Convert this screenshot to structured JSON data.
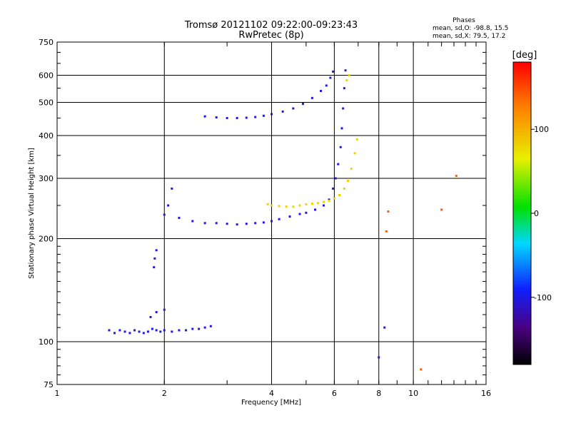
{
  "colors": {
    "frame": "#000000",
    "ordinary_mode": "#1a2ae0",
    "extraordinary_mode": "#d8f020"
  },
  "chart_data": {
    "type": "scatter",
    "title": "Tromsø 20121102 09:22:00-09:23:43",
    "subtitle": "RwPretec (8p)",
    "stats_header": "Phases",
    "stats_o": "mean, sd,O: -98.8, 15.5",
    "stats_x": "mean, sd,X:  79.5, 17.2",
    "xlabel": "Frequency [MHz]",
    "ylabel": "Stationary phase Virtual Height [km]",
    "x_scale": "log",
    "y_scale": "log",
    "xlim": [
      1,
      16
    ],
    "ylim": [
      75,
      750
    ],
    "x_ticks": [
      {
        "value": 1,
        "label": "1"
      },
      {
        "value": 2,
        "label": "2"
      },
      {
        "value": 4,
        "label": "4"
      },
      {
        "value": 6,
        "label": "6"
      },
      {
        "value": 8,
        "label": "8"
      },
      {
        "value": 10,
        "label": "10"
      },
      {
        "value": 16,
        "label": "16"
      }
    ],
    "y_ticks": [
      {
        "value": 75,
        "label": "75"
      },
      {
        "value": 100,
        "label": "100"
      },
      {
        "value": 200,
        "label": "200"
      },
      {
        "value": 300,
        "label": "300"
      },
      {
        "value": 400,
        "label": "400"
      },
      {
        "value": 500,
        "label": "500"
      },
      {
        "value": 600,
        "label": "600"
      },
      {
        "value": 750,
        "label": "750"
      }
    ],
    "x_gridlines": [
      2,
      4,
      6,
      8,
      10
    ],
    "y_gridlines": [
      100,
      200,
      300,
      400,
      500,
      600
    ],
    "grid": true,
    "colorbar": {
      "label": "[deg]",
      "min": -180,
      "max": 180,
      "ticks": [
        {
          "value": 100,
          "label": "100"
        },
        {
          "value": 0,
          "label": "0"
        },
        {
          "value": -100,
          "label": "-100"
        }
      ]
    },
    "series": [
      {
        "phase_deg": -100,
        "points": [
          [
            1.4,
            108
          ],
          [
            1.45,
            106
          ],
          [
            1.5,
            108
          ],
          [
            1.55,
            107
          ],
          [
            1.6,
            106
          ],
          [
            1.65,
            108
          ],
          [
            1.7,
            107
          ],
          [
            1.75,
            106
          ],
          [
            1.8,
            107
          ],
          [
            1.85,
            109
          ],
          [
            1.9,
            108
          ],
          [
            1.95,
            107
          ],
          [
            2.0,
            108
          ],
          [
            2.1,
            107
          ],
          [
            2.2,
            108
          ],
          [
            2.3,
            108
          ],
          [
            2.4,
            109
          ],
          [
            2.5,
            109
          ],
          [
            2.6,
            110
          ],
          [
            2.7,
            111
          ],
          [
            1.83,
            118
          ],
          [
            1.9,
            122
          ],
          [
            2.0,
            124
          ],
          [
            1.87,
            165
          ],
          [
            1.88,
            175
          ],
          [
            1.9,
            185
          ],
          [
            2.0,
            235
          ],
          [
            2.05,
            250
          ],
          [
            2.1,
            280
          ],
          [
            2.2,
            230
          ],
          [
            2.4,
            225
          ],
          [
            2.6,
            222
          ],
          [
            2.8,
            222
          ],
          [
            3.0,
            221
          ],
          [
            3.2,
            220
          ],
          [
            3.4,
            221
          ],
          [
            3.6,
            222
          ],
          [
            3.8,
            223
          ],
          [
            4.0,
            225
          ],
          [
            4.2,
            228
          ],
          [
            4.5,
            232
          ],
          [
            4.8,
            236
          ],
          [
            5.0,
            238
          ],
          [
            5.3,
            243
          ],
          [
            5.6,
            250
          ],
          [
            5.8,
            260
          ],
          [
            5.95,
            280
          ],
          [
            6.05,
            300
          ],
          [
            6.15,
            330
          ],
          [
            6.25,
            370
          ],
          [
            6.3,
            420
          ],
          [
            6.35,
            480
          ],
          [
            6.4,
            550
          ],
          [
            6.45,
            620
          ],
          [
            2.6,
            455
          ],
          [
            2.8,
            452
          ],
          [
            3.0,
            450
          ],
          [
            3.2,
            450
          ],
          [
            3.4,
            451
          ],
          [
            3.6,
            453
          ],
          [
            3.8,
            457
          ],
          [
            4.0,
            462
          ],
          [
            4.3,
            470
          ],
          [
            4.6,
            480
          ],
          [
            4.9,
            495
          ],
          [
            5.2,
            515
          ],
          [
            5.5,
            540
          ],
          [
            5.7,
            560
          ],
          [
            5.85,
            590
          ],
          [
            5.95,
            615
          ],
          [
            8.0,
            90
          ],
          [
            8.3,
            110
          ]
        ]
      },
      {
        "phase_deg": 80,
        "points": [
          [
            3.9,
            252
          ],
          [
            4.0,
            250
          ],
          [
            4.2,
            249
          ],
          [
            4.4,
            248
          ],
          [
            4.6,
            248
          ],
          [
            4.8,
            250
          ],
          [
            5.0,
            252
          ],
          [
            5.2,
            253
          ],
          [
            5.4,
            254
          ],
          [
            5.6,
            256
          ],
          [
            5.8,
            258
          ],
          [
            6.0,
            262
          ],
          [
            6.2,
            268
          ],
          [
            6.4,
            280
          ],
          [
            6.55,
            295
          ],
          [
            6.7,
            320
          ],
          [
            6.85,
            355
          ],
          [
            6.95,
            390
          ],
          [
            6.5,
            580
          ],
          [
            6.6,
            600
          ]
        ]
      },
      {
        "phase_deg": 140,
        "points": [
          [
            10.5,
            83
          ],
          [
            12.0,
            243
          ],
          [
            13.2,
            305
          ],
          [
            8.4,
            210
          ],
          [
            8.5,
            240
          ]
        ]
      }
    ]
  }
}
